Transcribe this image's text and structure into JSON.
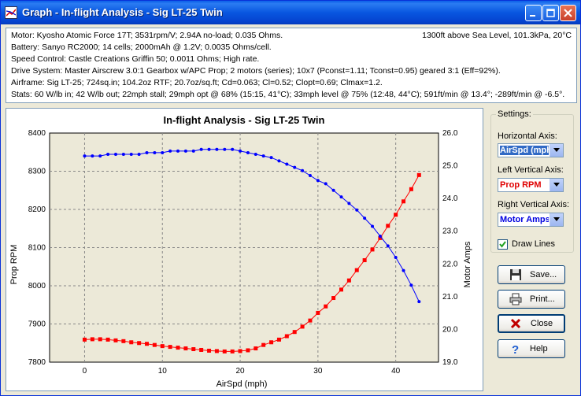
{
  "window": {
    "title": "Graph - In-flight Analysis - Sig LT-25 Twin"
  },
  "info": {
    "lines": [
      "Motor: Kyosho Atomic Force 17T; 3531rpm/V; 2.94A no-load; 0.035 Ohms.",
      "Battery: Sanyo RC2000; 14 cells; 2000mAh @ 1.2V; 0.0035 Ohms/cell.",
      "Speed Control: Castle Creations Griffin 50; 0.0011 Ohms; High rate.",
      "Drive System: Master Airscrew 3.0:1 Gearbox w/APC Prop; 2 motors (series); 10x7 (Pconst=1.11; Tconst=0.95) geared 3:1 (Eff=92%).",
      "Airframe: Sig LT-25; 724sq.in; 104.2oz RTF; 20.7oz/sq.ft; Cd=0.063; Cl=0.52; Clopt=0.69; Clmax=1.2.",
      "Stats: 60 W/lb in; 42 W/lb out; 22mph stall; 29mph opt @ 68% (15:15, 41°C); 33mph level @ 75% (12:48, 44°C); 591ft/min @ 13.4°; -289ft/min @ -6.5°."
    ],
    "conditions": "1300ft above Sea Level, 101.3kPa, 20°C"
  },
  "settings": {
    "group_label": "Settings:",
    "horizontal_label": "Horizontal Axis:",
    "horizontal_value": "AirSpd (mph)",
    "left_label": "Left Vertical Axis:",
    "left_value": "Prop RPM",
    "right_label": "Right Vertical Axis:",
    "right_value": "Motor Amps",
    "draw_lines_label": "Draw Lines",
    "draw_lines_checked": true
  },
  "buttons": {
    "save": "Save...",
    "print": "Print...",
    "close": "Close",
    "help": "Help"
  },
  "colors": {
    "rpm_series": "#FF0000",
    "amps_series": "#0000FF",
    "title_bar": "#0A5FE9"
  },
  "chart_data": {
    "type": "line",
    "title": "In-flight Analysis - Sig LT-25 Twin",
    "xlabel": "AirSpd (mph)",
    "ylabel": "Prop RPM",
    "y2label": "Motor Amps",
    "xlim": [
      -4.5,
      45.5
    ],
    "ylim": [
      7800,
      8400
    ],
    "y2lim": [
      19.0,
      26.0
    ],
    "xticks": [
      0,
      10,
      20,
      30,
      40
    ],
    "yticks": [
      7800,
      7900,
      8000,
      8100,
      8200,
      8300,
      8400
    ],
    "y2ticks": [
      19.0,
      20.0,
      21.0,
      22.0,
      23.0,
      24.0,
      25.0,
      26.0
    ],
    "grid": true,
    "x": [
      0,
      1,
      2,
      3,
      4,
      5,
      6,
      7,
      8,
      9,
      10,
      11,
      12,
      13,
      14,
      15,
      16,
      17,
      18,
      19,
      20,
      21,
      22,
      23,
      24,
      25,
      26,
      27,
      28,
      29,
      30,
      31,
      32,
      33,
      34,
      35,
      36,
      37,
      38,
      39,
      40,
      41,
      42,
      43
    ],
    "series": [
      {
        "name": "Prop RPM",
        "axis": "left",
        "values": [
          7859,
          7860,
          7860,
          7859,
          7857,
          7855,
          7852,
          7850,
          7848,
          7845,
          7842,
          7840,
          7838,
          7836,
          7834,
          7832,
          7830,
          7829,
          7828,
          7828,
          7829,
          7831,
          7836,
          7845,
          7852,
          7859,
          7868,
          7879,
          7893,
          7909,
          7929,
          7946,
          7968,
          7990,
          8014,
          8041,
          8067,
          8095,
          8125,
          8157,
          8186,
          8221,
          8253,
          8290
        ]
      },
      {
        "name": "Motor Amps",
        "axis": "right",
        "values": [
          25.3,
          25.3,
          25.3,
          25.35,
          25.35,
          25.35,
          25.35,
          25.35,
          25.4,
          25.4,
          25.4,
          25.45,
          25.45,
          25.45,
          25.45,
          25.5,
          25.5,
          25.5,
          25.5,
          25.5,
          25.45,
          25.4,
          25.35,
          25.3,
          25.25,
          25.15,
          25.05,
          24.95,
          24.85,
          24.7,
          24.55,
          24.45,
          24.25,
          24.05,
          23.85,
          23.65,
          23.4,
          23.15,
          22.85,
          22.55,
          22.2,
          21.8,
          21.35,
          20.85
        ]
      }
    ]
  }
}
